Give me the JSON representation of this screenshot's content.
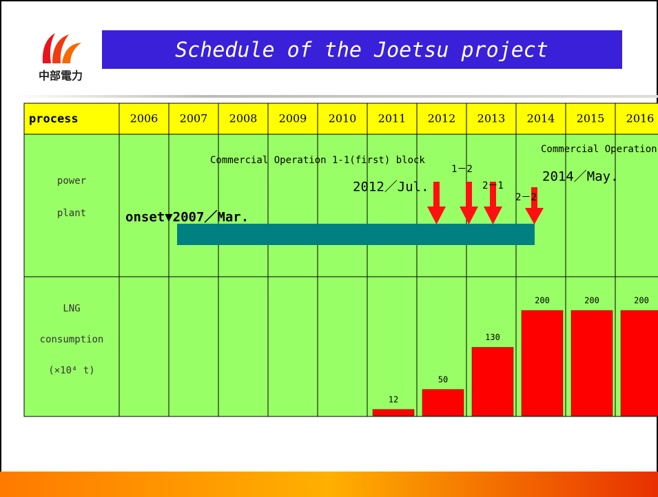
{
  "logo_text": "中部電力",
  "title": "Schedule of the Joetsu project",
  "table": {
    "header": "process",
    "row_labels": [
      [
        "power",
        "plant"
      ],
      [
        "LNG",
        "consumption",
        "(×10⁴ t)"
      ]
    ]
  },
  "annotations": {
    "commercial_1_1": "Commercial Operation 1-1(first) block",
    "date_2012": "2012／Jul.",
    "op_1_2": "1－2",
    "op_2_1": "2－1",
    "op_2_2": "2－2",
    "commercial_2": "Commercial Operation",
    "date_2014": "2014／May.",
    "onset": "onset▼2007／Mar."
  },
  "chart_data": {
    "type": "bar",
    "categories": [
      "2006",
      "2007",
      "2008",
      "2009",
      "2010",
      "2011",
      "2012",
      "2013",
      "2014",
      "2015",
      "2016"
    ],
    "values": [
      null,
      null,
      null,
      null,
      null,
      12,
      50,
      130,
      200,
      200,
      200
    ],
    "color": "#ff0000"
  }
}
